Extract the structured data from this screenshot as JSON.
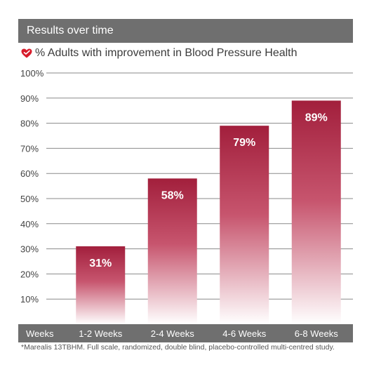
{
  "banner": {
    "title": "Results over time"
  },
  "subtitle": {
    "text": "% Adults with improvement in Blood Pressure Health",
    "icon": "heart-icon",
    "icon_color": "#d71c2b"
  },
  "footnote": {
    "text": "*Marealis 13TBHM. Full scale, randomized, double blind, placebo-controlled multi-centred study."
  },
  "colors": {
    "bar_top": "#a21f3c",
    "bar_bottom": "#ffffff",
    "banner": "#6f6f6f",
    "axis_bar": "#6f6f6f",
    "grid": "#8a8a8a"
  },
  "chart_data": {
    "type": "bar",
    "title": "% Adults with improvement in Blood Pressure Health",
    "xlabel": "Weeks",
    "ylabel": "",
    "categories": [
      "1-2 Weeks",
      "2-4 Weeks",
      "4-6 Weeks",
      "6-8 Weeks"
    ],
    "values": [
      31,
      58,
      79,
      89
    ],
    "data_labels": [
      "31%",
      "58%",
      "79%",
      "89%"
    ],
    "ylim": [
      0,
      100
    ],
    "yticks": [
      10,
      20,
      30,
      40,
      50,
      60,
      70,
      80,
      90,
      100
    ],
    "ytick_labels": [
      "10%",
      "20%",
      "30%",
      "40%",
      "50%",
      "60%",
      "70%",
      "80%",
      "90%",
      "100%"
    ],
    "grid": true
  }
}
